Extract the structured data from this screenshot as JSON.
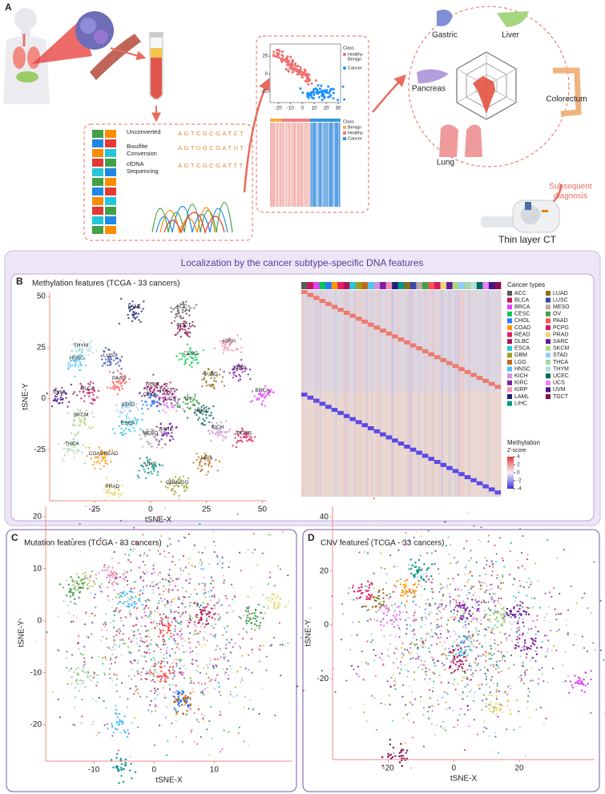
{
  "panel_a": {
    "label": "A",
    "steps": [
      [
        "Unconverted"
      ],
      [
        "Bisulfite",
        "Conversion"
      ],
      [
        "cfDNA",
        "Sequencing"
      ]
    ],
    "sequences": [
      "AGTCGCGATCT",
      "AGTUGCGATUT",
      "AGTCGCGATTT"
    ],
    "scatter": {
      "xlim": [
        -27,
        32
      ],
      "ylim": [
        -40,
        42
      ],
      "xticks": [
        -20,
        -10,
        0,
        10,
        20,
        30
      ],
      "yticks": [
        25,
        0,
        -25
      ],
      "legend_title": "Class",
      "legend": [
        {
          "name": [
            "Healthy",
            "Benign"
          ],
          "color": "#f07070"
        },
        {
          "name": [
            "Cancer"
          ],
          "color": "#1e90ff"
        }
      ]
    },
    "heatmap_legend": {
      "title": "Class",
      "items": [
        {
          "name": "Benign",
          "color": "#f5b041"
        },
        {
          "name": "Healthy",
          "color": "#f08080"
        },
        {
          "name": "Cancer",
          "color": "#3498db"
        }
      ]
    },
    "organs": [
      "Gastric",
      "Liver",
      "Pancreas",
      "Colorectum",
      "Lung"
    ],
    "next_step": [
      "Subsequent",
      "diagnosis"
    ],
    "imaging": "Thin layer CT"
  },
  "banner": "Localization by the cancer subtype-specific DNA features",
  "panel_b": {
    "label": "B",
    "legend_title": "Cancer types",
    "cancer_types": [
      {
        "name": "ACC",
        "color": "#5a5a5a"
      },
      {
        "name": "BLCA",
        "color": "#c2185b"
      },
      {
        "name": "BRCA",
        "color": "#e040fb"
      },
      {
        "name": "CESC",
        "color": "#00c853"
      },
      {
        "name": "CHOL",
        "color": "#2979ff"
      },
      {
        "name": "COAD",
        "color": "#ff9800"
      },
      {
        "name": "READ",
        "color": "#e91e63"
      },
      {
        "name": "DLBC",
        "color": "#ad1457"
      },
      {
        "name": "ESCA",
        "color": "#26c6da"
      },
      {
        "name": "GBM",
        "color": "#9e9d24"
      },
      {
        "name": "LGG",
        "color": "#bf6a1b"
      },
      {
        "name": "HNSC",
        "color": "#4fc3f7"
      },
      {
        "name": "KICH",
        "color": "#ce93d8"
      },
      {
        "name": "KIRC",
        "color": "#7b1fa2"
      },
      {
        "name": "KIRP",
        "color": "#f48fb1"
      },
      {
        "name": "LAML",
        "color": "#1a237e"
      },
      {
        "name": "LIHC",
        "color": "#009688"
      },
      {
        "name": "LUAD",
        "color": "#8d6e1a"
      },
      {
        "name": "LUSC",
        "color": "#3949ab"
      },
      {
        "name": "MESO",
        "color": "#bcaaa4"
      },
      {
        "name": "OV",
        "color": "#43a047"
      },
      {
        "name": "PAAD",
        "color": "#ff5252"
      },
      {
        "name": "PCPG",
        "color": "#d81b60"
      },
      {
        "name": "PRAD",
        "color": "#e6d97a"
      },
      {
        "name": "SARC",
        "color": "#6a1b9a"
      },
      {
        "name": "SKCM",
        "color": "#aed581"
      },
      {
        "name": "STAD",
        "color": "#90caf9"
      },
      {
        "name": "THCA",
        "color": "#a5d6a7"
      },
      {
        "name": "THYM",
        "color": "#b2dfdb"
      },
      {
        "name": "UCEC",
        "color": "#00695c"
      },
      {
        "name": "UCS",
        "color": "#ea80fc"
      },
      {
        "name": "UVM",
        "color": "#4a148c"
      },
      {
        "name": "TGCT",
        "color": "#880e4f"
      }
    ],
    "heatmap_legend": {
      "title": "Methylation",
      "subtitle": "Z-score",
      "ticks": [
        4,
        2,
        0,
        -2,
        -4
      ]
    }
  },
  "panel_c": {
    "label": "C"
  },
  "panel_d": {
    "label": "D"
  },
  "chart_data": [
    {
      "type": "scatter",
      "title": "Methylation features (TCGA - 33 cancers)",
      "x_label": "tSNE-X",
      "y_label": "tSNE-Y",
      "xlim": [
        -45,
        52
      ],
      "ylim": [
        -50,
        52
      ],
      "xticks": [
        -25,
        0,
        25,
        50
      ],
      "yticks": [
        -25,
        0,
        25,
        50
      ],
      "annotations": [
        {
          "text": "LAML",
          "x": -7,
          "y": 45,
          "color": "#1a237e"
        },
        {
          "text": "ACC",
          "x": 14,
          "y": 45,
          "color": "#5a5a5a"
        },
        {
          "text": "TGCT",
          "x": 15,
          "y": 36,
          "color": "#880e4f"
        },
        {
          "text": "KIRP",
          "x": 35,
          "y": 28,
          "color": "#f48fb1"
        },
        {
          "text": "THYM",
          "x": -31,
          "y": 26,
          "color": "#b2dfdb"
        },
        {
          "text": "LUSC",
          "x": -18,
          "y": 21,
          "color": "#3949ab"
        },
        {
          "text": "CESC",
          "x": 18,
          "y": 22,
          "color": "#00c853"
        },
        {
          "text": "HNSC",
          "x": -33,
          "y": 20,
          "color": "#4fc3f7"
        },
        {
          "text": "KIRC",
          "x": 40,
          "y": 15,
          "color": "#7b1fa2"
        },
        {
          "text": "LUAD",
          "x": 27,
          "y": 12,
          "color": "#8d6e1a"
        },
        {
          "text": "BRCA",
          "x": 50,
          "y": 4,
          "color": "#e040fb"
        },
        {
          "text": "BLCA",
          "x": -28,
          "y": 5,
          "color": "#c2185b"
        },
        {
          "text": "DLBC",
          "x": 1,
          "y": 7,
          "color": "#ad1457"
        },
        {
          "text": "PAAD",
          "x": -14,
          "y": 10,
          "color": "#ff5252"
        },
        {
          "text": "TGCT",
          "x": 7,
          "y": 4,
          "color": "#880e4f"
        },
        {
          "text": "CHOL",
          "x": 0,
          "y": 2,
          "color": "#2979ff"
        },
        {
          "text": "UCS",
          "x": 9,
          "y": 0,
          "color": "#ea80fc"
        },
        {
          "text": "OV",
          "x": 17,
          "y": 0,
          "color": "#43a047"
        },
        {
          "text": "UVM",
          "x": -41,
          "y": 3,
          "color": "#4a148c"
        },
        {
          "text": "UCEC",
          "x": 23,
          "y": -6,
          "color": "#00695c"
        },
        {
          "text": "STAD",
          "x": -10,
          "y": -3,
          "color": "#90caf9"
        },
        {
          "text": "SKCM",
          "x": -31,
          "y": -8,
          "color": "#aed581"
        },
        {
          "text": "KICH",
          "x": 30,
          "y": -14,
          "color": "#ce93d8"
        },
        {
          "text": "SARC",
          "x": 7,
          "y": -15,
          "color": "#6a1b9a"
        },
        {
          "text": "ESCA",
          "x": -10,
          "y": -12,
          "color": "#26c6da"
        },
        {
          "text": "MESO",
          "x": 0,
          "y": -17,
          "color": "#bcaaa4"
        },
        {
          "text": "PCPG",
          "x": 42,
          "y": -17,
          "color": "#d81b60"
        },
        {
          "text": "THCA",
          "x": -35,
          "y": -22,
          "color": "#a5d6a7"
        },
        {
          "text": "COADREAD",
          "x": -21,
          "y": -27,
          "color": "#ff9800"
        },
        {
          "text": "LIHC",
          "x": 0,
          "y": -32,
          "color": "#009688"
        },
        {
          "text": "LGG",
          "x": 25,
          "y": -29,
          "color": "#bf6a1b"
        },
        {
          "text": "GBMLGG",
          "x": 12,
          "y": -41,
          "color": "#9e9d24"
        },
        {
          "text": "PRAD",
          "x": -17,
          "y": -43,
          "color": "#e6d97a"
        }
      ]
    },
    {
      "type": "scatter",
      "title": "Mutation features (TCGA - 33 cancers)",
      "x_label": "tSNE-X",
      "y_label": "tSNE-Y",
      "xlim": [
        -18,
        23
      ],
      "ylim": [
        -27,
        22
      ],
      "xticks": [
        -10,
        0,
        10
      ],
      "yticks": [
        -20,
        -10,
        0,
        10,
        20
      ]
    },
    {
      "type": "scatter",
      "title": "CNV features (TCGA - 33 cancers)",
      "x_label": "tSNE-X",
      "y_label": "tSNE-Y",
      "xlim": [
        -37,
        43
      ],
      "ylim": [
        -50,
        44
      ],
      "xticks": [
        -20,
        0,
        20
      ],
      "yticks": [
        -20,
        0,
        20,
        40
      ]
    }
  ]
}
